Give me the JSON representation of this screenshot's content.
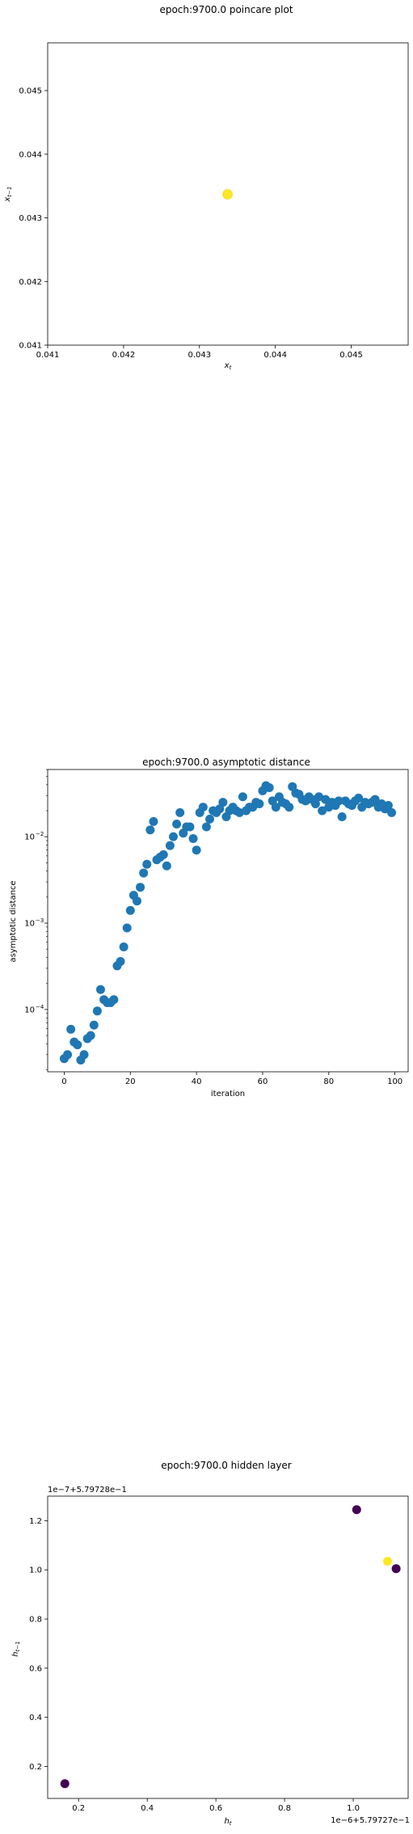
{
  "figures": [
    {
      "title": "epoch:9700.0 poincare plot",
      "xlabel": "x_t",
      "ylabel": "x_{t-1}",
      "x_ticks": [
        "0.041",
        "0.042",
        "0.043",
        "0.044",
        "0.045"
      ],
      "y_ticks": [
        "0.041",
        "0.042",
        "0.043",
        "0.044",
        "0.045"
      ]
    },
    {
      "title": "epoch:9700.0 asymptotic distance",
      "xlabel": "iteration",
      "ylabel": "asymptotic distance",
      "x_ticks": [
        "0",
        "20",
        "40",
        "60",
        "80",
        "100"
      ],
      "y_ticks": [
        "10",
        "10",
        "10"
      ],
      "y_tick_exps": [
        "−2",
        "−3",
        "−4"
      ]
    },
    {
      "title": "epoch:9700.0 hidden layer",
      "xlabel": "h_t",
      "ylabel": "h_{t-1}",
      "x_ticks": [
        "0.2",
        "0.4",
        "0.6",
        "0.8",
        "1.0"
      ],
      "y_ticks": [
        "1.2",
        "1.0",
        "0.8",
        "0.6",
        "0.4",
        "0.2"
      ],
      "x_offset": "1e−6+5.79727e−1",
      "y_offset": "1e−7+5.79728e−1"
    }
  ],
  "chart_data": [
    {
      "type": "scatter",
      "title": "epoch:9700.0 poincare plot",
      "xlabel": "x_t",
      "ylabel": "x_{t-1}",
      "xlim": [
        0.041,
        0.04575
      ],
      "ylim": [
        0.041,
        0.04575
      ],
      "grid": false,
      "color": "#fde725",
      "points": [
        [
          0.04337,
          0.04337
        ]
      ]
    },
    {
      "type": "scatter",
      "title": "epoch:9700.0 asymptotic distance",
      "xlabel": "iteration",
      "ylabel": "asymptotic distance",
      "yscale": "log",
      "xlim": [
        -5,
        104
      ],
      "ylim": [
        1.9e-05,
        0.06
      ],
      "grid": false,
      "color": "#1f77b4",
      "x": [
        0,
        1,
        2,
        3,
        4,
        5,
        6,
        7,
        8,
        9,
        10,
        11,
        12,
        13,
        14,
        15,
        16,
        17,
        18,
        19,
        20,
        21,
        22,
        23,
        24,
        25,
        26,
        27,
        28,
        29,
        30,
        31,
        32,
        33,
        34,
        35,
        36,
        37,
        38,
        39,
        40,
        41,
        42,
        43,
        44,
        45,
        46,
        47,
        48,
        49,
        50,
        51,
        52,
        53,
        54,
        55,
        56,
        57,
        58,
        59,
        60,
        61,
        62,
        63,
        64,
        65,
        66,
        67,
        68,
        69,
        70,
        71,
        72,
        73,
        74,
        75,
        76,
        77,
        78,
        79,
        80,
        81,
        82,
        83,
        84,
        85,
        86,
        87,
        88,
        89,
        90,
        91,
        92,
        93,
        94,
        95,
        96,
        97,
        98,
        99
      ],
      "y": [
        2.7e-05,
        3e-05,
        5.9e-05,
        4.2e-05,
        3.9e-05,
        2.6e-05,
        3e-05,
        4.6e-05,
        5e-05,
        6.6e-05,
        9.6e-05,
        0.00017,
        0.00013,
        0.00012,
        0.00012,
        0.00013,
        0.00032,
        0.00036,
        0.00053,
        0.00088,
        0.0014,
        0.0021,
        0.0018,
        0.0026,
        0.0038,
        0.0048,
        0.012,
        0.015,
        0.0054,
        0.0058,
        0.0062,
        0.0046,
        0.0079,
        0.01,
        0.014,
        0.019,
        0.011,
        0.013,
        0.013,
        0.0095,
        0.007,
        0.019,
        0.022,
        0.013,
        0.016,
        0.02,
        0.019,
        0.021,
        0.025,
        0.017,
        0.02,
        0.022,
        0.02,
        0.019,
        0.029,
        0.02,
        0.022,
        0.022,
        0.025,
        0.024,
        0.034,
        0.039,
        0.037,
        0.026,
        0.022,
        0.029,
        0.025,
        0.024,
        0.022,
        0.038,
        0.032,
        0.031,
        0.027,
        0.026,
        0.029,
        0.027,
        0.024,
        0.029,
        0.02,
        0.027,
        0.022,
        0.025,
        0.023,
        0.026,
        0.017,
        0.026,
        0.024,
        0.023,
        0.026,
        0.028,
        0.022,
        0.025,
        0.024,
        0.025,
        0.027,
        0.022,
        0.024,
        0.021,
        0.023,
        0.019
      ]
    },
    {
      "type": "scatter",
      "title": "epoch:9700.0 hidden layer",
      "xlabel": "h_t",
      "ylabel": "h_{t-1}",
      "x_offset": "1e−6+5.79727e−1",
      "y_offset": "1e−7+5.79728e−1",
      "xlim": [
        0.11,
        1.16
      ],
      "ylim": [
        0.07,
        1.3
      ],
      "grid": false,
      "points": [
        {
          "x": 0.16,
          "y": 0.13,
          "color": "#440154"
        },
        {
          "x": 1.01,
          "y": 1.245,
          "color": "#440154"
        },
        {
          "x": 1.1,
          "y": 1.035,
          "color": "#fde725"
        },
        {
          "x": 1.125,
          "y": 1.005,
          "color": "#440154"
        }
      ]
    }
  ]
}
